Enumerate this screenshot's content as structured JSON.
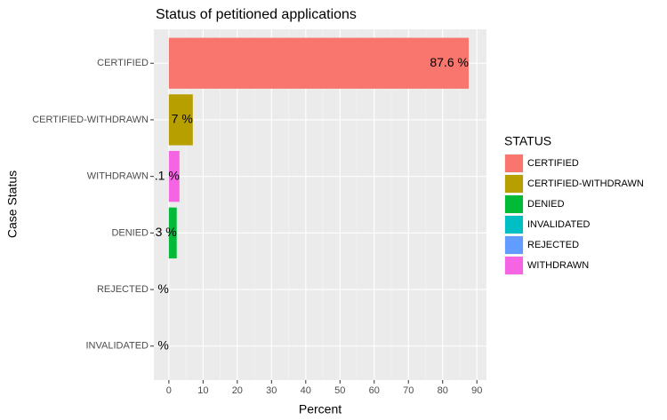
{
  "chart_data": {
    "type": "bar",
    "orientation": "horizontal",
    "title": "Status of petitioned applications",
    "x_label": "Percent",
    "y_label": "Case Status",
    "categories": [
      "CERTIFIED",
      "CERTIFIED-WITHDRAWN",
      "WITHDRAWN",
      "DENIED",
      "REJECTED",
      "INVALIDATED"
    ],
    "values": [
      87.6,
      7,
      3.1,
      2.3,
      0,
      0
    ],
    "value_labels": [
      "87.6 %",
      "7 %",
      "3.1 %",
      "2.3 %",
      "0 %",
      "0 %"
    ],
    "xlim": [
      -4.38,
      92.8
    ],
    "xticks": [
      0,
      10,
      20,
      30,
      40,
      50,
      60,
      70,
      80,
      90
    ],
    "grid": true,
    "legend": {
      "title": "STATUS",
      "position": "right",
      "items": [
        "CERTIFIED",
        "CERTIFIED-WITHDRAWN",
        "DENIED",
        "INVALIDATED",
        "REJECTED",
        "WITHDRAWN"
      ],
      "colors": [
        "#F8766D",
        "#B79F00",
        "#00BA38",
        "#00BFC4",
        "#619CFF",
        "#F564E3"
      ]
    }
  }
}
